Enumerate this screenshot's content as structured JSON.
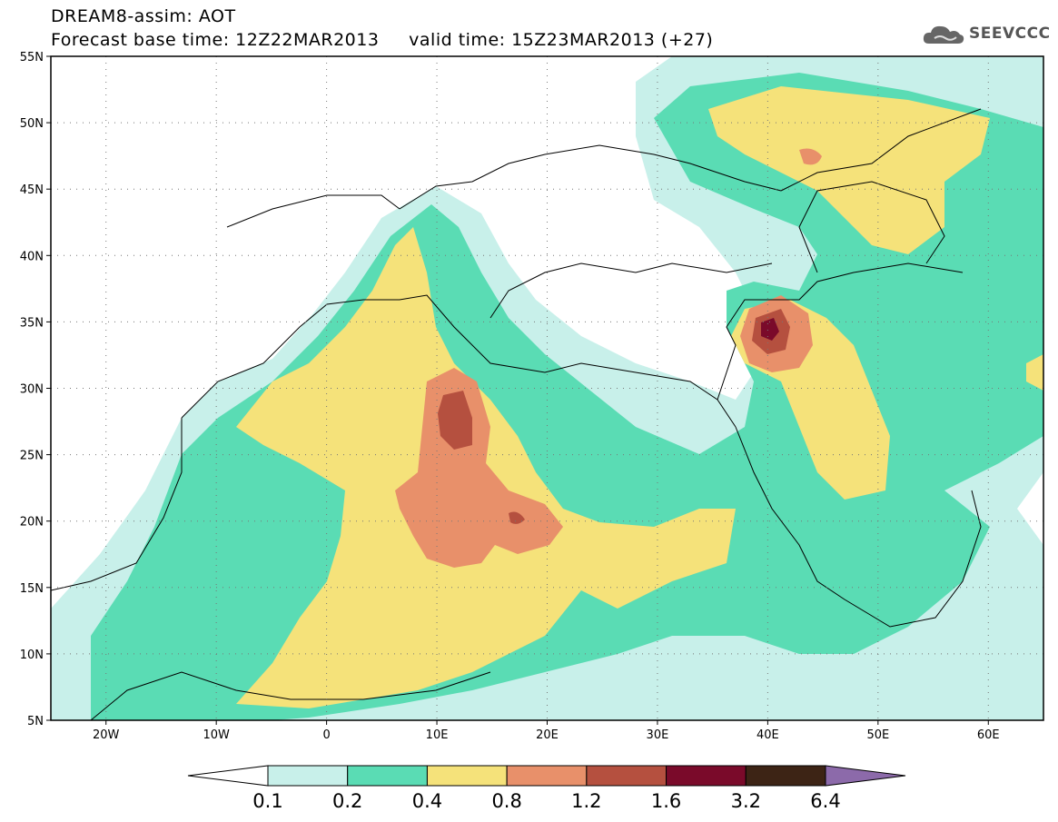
{
  "title": {
    "line1": "DREAM8-assim: AOT",
    "base_time_label": "Forecast base time: 12Z22MAR2013",
    "valid_time_label": "valid time: 15Z23MAR2013 (+27)"
  },
  "logo": {
    "text": "SEEVCCC",
    "icon": "cloud-logo-icon"
  },
  "map": {
    "lon_range": [
      -25,
      65
    ],
    "lat_range": [
      5,
      55
    ],
    "lat_ticks": [
      "55N",
      "50N",
      "45N",
      "40N",
      "35N",
      "30N",
      "25N",
      "20N",
      "15N",
      "10N",
      "5N"
    ],
    "lon_ticks": [
      "20W",
      "10W",
      "0",
      "10E",
      "20E",
      "30E",
      "40E",
      "50E",
      "60E"
    ],
    "grid": "dotted"
  },
  "colorbar": {
    "labels": [
      "0.1",
      "0.2",
      "0.4",
      "0.8",
      "1.2",
      "1.6",
      "3.2",
      "6.4"
    ],
    "colors": [
      "#ffffff",
      "#c8f0ea",
      "#5adcb4",
      "#f5e27a",
      "#e8906a",
      "#b5503f",
      "#7a0a2a",
      "#3d2415",
      "#8c6aaa"
    ]
  }
}
